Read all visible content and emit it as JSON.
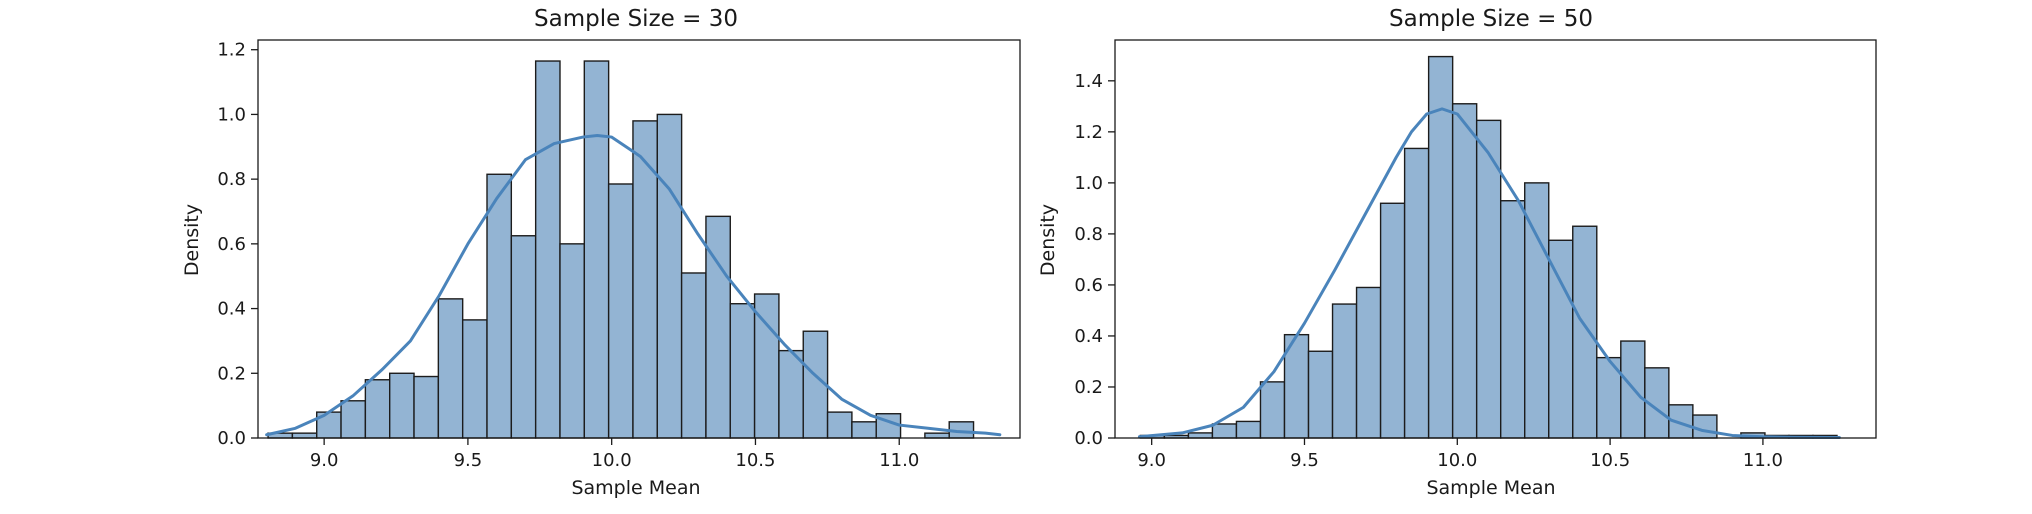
{
  "chart_data": [
    {
      "type": "bar",
      "title": "Sample Size = 30",
      "xlabel": "Sample Mean",
      "ylabel": "Density",
      "xlim": [
        8.77,
        11.42
      ],
      "ylim": [
        0,
        1.23
      ],
      "xticks": [
        9.0,
        9.5,
        10.0,
        10.5,
        11.0
      ],
      "yticks": [
        0.0,
        0.2,
        0.4,
        0.6,
        0.8,
        1.0,
        1.2
      ],
      "xtick_labels": [
        "9.0",
        "9.5",
        "10.0",
        "10.5",
        "11.0"
      ],
      "ytick_labels": [
        "0.0",
        "0.2",
        "0.4",
        "0.6",
        "0.8",
        "1.0",
        "1.2"
      ],
      "bin_start": 8.805,
      "bin_width": 0.0846,
      "values": [
        0.015,
        0.015,
        0.08,
        0.115,
        0.18,
        0.2,
        0.19,
        0.43,
        0.365,
        0.815,
        0.625,
        1.165,
        0.6,
        1.165,
        0.785,
        0.98,
        1.0,
        0.51,
        0.685,
        0.415,
        0.445,
        0.27,
        0.33,
        0.08,
        0.05,
        0.075,
        0.0,
        0.015,
        0.05
      ],
      "kde": {
        "x": [
          8.8,
          8.9,
          9.0,
          9.1,
          9.2,
          9.3,
          9.4,
          9.5,
          9.6,
          9.7,
          9.8,
          9.9,
          9.95,
          10.0,
          10.1,
          10.2,
          10.3,
          10.4,
          10.5,
          10.6,
          10.7,
          10.8,
          10.9,
          11.0,
          11.1,
          11.2,
          11.3,
          11.35
        ],
        "y": [
          0.01,
          0.03,
          0.07,
          0.13,
          0.21,
          0.3,
          0.44,
          0.6,
          0.74,
          0.86,
          0.91,
          0.93,
          0.935,
          0.93,
          0.87,
          0.77,
          0.63,
          0.5,
          0.39,
          0.29,
          0.2,
          0.12,
          0.07,
          0.04,
          0.03,
          0.02,
          0.015,
          0.01
        ]
      },
      "grid": false,
      "colors": {
        "bar_fill": "#93b4d3",
        "bar_edge": "#1c1c1c",
        "kde_line": "#4a84bb"
      }
    },
    {
      "type": "bar",
      "title": "Sample Size = 50",
      "xlabel": "Sample Mean",
      "ylabel": "Density",
      "xlim": [
        8.88,
        11.37
      ],
      "ylim": [
        0,
        1.56
      ],
      "xticks": [
        9.0,
        9.5,
        10.0,
        10.5,
        11.0
      ],
      "yticks": [
        0.0,
        0.2,
        0.4,
        0.6,
        0.8,
        1.0,
        1.2,
        1.4
      ],
      "xtick_labels": [
        "9.0",
        "9.5",
        "10.0",
        "10.5",
        "11.0"
      ],
      "ytick_labels": [
        "0.0",
        "0.2",
        "0.4",
        "0.6",
        "0.8",
        "1.0",
        "1.2",
        "1.4"
      ],
      "bin_start": 8.963,
      "bin_width": 0.0786,
      "values": [
        0.01,
        0.01,
        0.02,
        0.055,
        0.065,
        0.22,
        0.405,
        0.34,
        0.525,
        0.59,
        0.92,
        1.135,
        1.495,
        1.31,
        1.245,
        0.93,
        1.0,
        0.775,
        0.83,
        0.315,
        0.38,
        0.275,
        0.13,
        0.09,
        0.0,
        0.02,
        0.01,
        0.01,
        0.01
      ],
      "kde": {
        "x": [
          8.96,
          9.1,
          9.2,
          9.3,
          9.4,
          9.5,
          9.6,
          9.7,
          9.8,
          9.85,
          9.9,
          9.95,
          10.0,
          10.1,
          10.2,
          10.3,
          10.4,
          10.5,
          10.6,
          10.7,
          10.8,
          10.9,
          11.0,
          11.1,
          11.25
        ],
        "y": [
          0.005,
          0.02,
          0.05,
          0.12,
          0.26,
          0.45,
          0.66,
          0.88,
          1.1,
          1.2,
          1.27,
          1.29,
          1.27,
          1.12,
          0.93,
          0.7,
          0.47,
          0.3,
          0.16,
          0.07,
          0.03,
          0.01,
          0.005,
          0.003,
          0.002
        ]
      },
      "grid": false,
      "colors": {
        "bar_fill": "#93b4d3",
        "bar_edge": "#1c1c1c",
        "kde_line": "#4a84bb"
      }
    }
  ]
}
